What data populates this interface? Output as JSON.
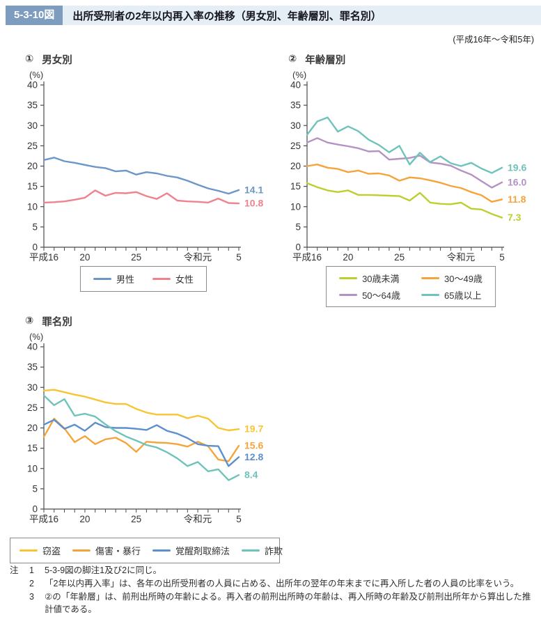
{
  "header": {
    "figure_no": "5-3-10図",
    "title": "出所受刑者の2年以内再入率の推移（男女別、年齢層別、罪名別）",
    "period": "(平成16年～令和5年)"
  },
  "axis": {
    "unit": "(%)",
    "ymax": 40,
    "ystep": 5,
    "n_points": 20,
    "x_ticks": [
      {
        "label": "平成16",
        "index": 0
      },
      {
        "label": "20",
        "index": 4
      },
      {
        "label": "25",
        "index": 9
      },
      {
        "label": "令和元",
        "index": 15
      },
      {
        "label": "5",
        "index": 19
      }
    ]
  },
  "chart_data": [
    {
      "id": "gender",
      "number": "①",
      "title": "男女別",
      "type": "line",
      "ylabel": "(%)",
      "ylim": [
        0,
        40
      ],
      "grid": false,
      "legend_position": "bottom",
      "categories": [
        "平成16",
        "17",
        "18",
        "19",
        "20",
        "21",
        "22",
        "23",
        "24",
        "25",
        "26",
        "27",
        "28",
        "29",
        "30",
        "令和元",
        "2",
        "3",
        "4",
        "5"
      ],
      "series": [
        {
          "name": "男性",
          "color": "#6C96C8",
          "end_label": "14.1",
          "values": [
            21.5,
            22.1,
            21.2,
            20.8,
            20.3,
            19.8,
            19.5,
            18.7,
            18.9,
            17.9,
            18.5,
            18.2,
            17.6,
            17.2,
            16.4,
            15.4,
            14.5,
            13.9,
            13.2,
            14.1
          ]
        },
        {
          "name": "女性",
          "color": "#F0828E",
          "end_label": "10.8",
          "values": [
            11.0,
            11.1,
            11.3,
            11.7,
            12.2,
            14.0,
            12.7,
            13.4,
            13.3,
            13.6,
            12.6,
            11.9,
            13.3,
            11.5,
            11.3,
            11.2,
            11.0,
            12.0,
            10.9,
            10.8
          ]
        }
      ]
    },
    {
      "id": "age-group",
      "number": "②",
      "title": "年齢層別",
      "type": "line",
      "ylabel": "(%)",
      "ylim": [
        0,
        40
      ],
      "grid": false,
      "legend_position": "bottom",
      "categories": [
        "平成16",
        "17",
        "18",
        "19",
        "20",
        "21",
        "22",
        "23",
        "24",
        "25",
        "26",
        "27",
        "28",
        "29",
        "30",
        "令和元",
        "2",
        "3",
        "4",
        "5"
      ],
      "series": [
        {
          "name": "30歳未満",
          "color": "#BCCF2D",
          "end_label": "7.3",
          "values": [
            15.8,
            14.8,
            14.0,
            13.6,
            14.0,
            12.9,
            12.9,
            12.8,
            12.7,
            12.6,
            11.5,
            13.4,
            11.0,
            10.7,
            10.6,
            11.0,
            9.5,
            9.3,
            8.2,
            7.3
          ]
        },
        {
          "name": "30～49歳",
          "color": "#F5A43C",
          "end_label": "11.8",
          "values": [
            20.0,
            20.4,
            19.6,
            19.3,
            18.5,
            18.9,
            18.1,
            18.2,
            17.7,
            16.4,
            17.2,
            17.0,
            16.5,
            15.9,
            15.1,
            14.6,
            13.6,
            12.8,
            11.2,
            11.8
          ]
        },
        {
          "name": "50～64歳",
          "color": "#B492C4",
          "end_label": "16.0",
          "values": [
            25.8,
            26.9,
            25.8,
            25.3,
            24.9,
            24.4,
            23.6,
            23.7,
            21.6,
            21.8,
            22.0,
            22.6,
            20.9,
            20.6,
            20.1,
            18.9,
            17.9,
            16.3,
            14.7,
            16.0
          ]
        },
        {
          "name": "65歳以上",
          "color": "#6EC3BA",
          "end_label": "19.6",
          "values": [
            27.7,
            31.0,
            32.0,
            28.5,
            29.8,
            28.6,
            26.5,
            25.2,
            23.4,
            25.0,
            20.4,
            23.3,
            21.0,
            22.4,
            20.7,
            20.0,
            20.8,
            19.4,
            18.3,
            19.6
          ]
        }
      ]
    },
    {
      "id": "offense",
      "number": "③",
      "title": "罪名別",
      "type": "line",
      "ylabel": "(%)",
      "ylim": [
        0,
        40
      ],
      "grid": false,
      "legend_position": "bottom",
      "categories": [
        "平成16",
        "17",
        "18",
        "19",
        "20",
        "21",
        "22",
        "23",
        "24",
        "25",
        "26",
        "27",
        "28",
        "29",
        "30",
        "令和元",
        "2",
        "3",
        "4",
        "5"
      ],
      "series": [
        {
          "name": "窃盗",
          "color": "#F8C532",
          "end_label": "19.7",
          "values": [
            29.2,
            29.4,
            28.8,
            28.2,
            27.7,
            27.0,
            26.3,
            25.9,
            25.9,
            24.7,
            23.8,
            23.3,
            23.3,
            23.3,
            22.4,
            23.0,
            22.3,
            20.0,
            19.4,
            19.7
          ]
        },
        {
          "name": "傷害・暴行",
          "color": "#F5A43C",
          "end_label": "15.6",
          "values": [
            17.8,
            22.3,
            19.9,
            16.5,
            18.0,
            16.0,
            17.2,
            17.6,
            16.3,
            14.1,
            16.6,
            16.4,
            16.3,
            16.0,
            15.4,
            16.6,
            15.5,
            12.2,
            11.8,
            15.6
          ]
        },
        {
          "name": "覚醒剤取締法",
          "color": "#5C8FCC",
          "end_label": "12.8",
          "values": [
            20.8,
            22.0,
            19.8,
            20.8,
            19.3,
            21.3,
            20.2,
            20.0,
            20.0,
            19.8,
            19.5,
            20.7,
            19.3,
            18.6,
            17.5,
            16.0,
            15.6,
            15.5,
            10.6,
            12.8
          ]
        },
        {
          "name": "詐欺",
          "color": "#6EC3BA",
          "end_label": "8.4",
          "values": [
            28.0,
            25.6,
            27.1,
            23.0,
            23.5,
            22.8,
            20.9,
            19.2,
            17.9,
            16.9,
            15.8,
            15.2,
            14.0,
            12.5,
            10.6,
            11.6,
            9.3,
            9.8,
            7.1,
            8.4
          ]
        }
      ]
    }
  ],
  "notes": {
    "marker": "注",
    "items": [
      {
        "num": "1",
        "text": "5-3-9図の脚注1及び2に同じ。"
      },
      {
        "num": "2",
        "text": "「2年以内再入率」は、各年の出所受刑者の人員に占める、出所年の翌年の年末までに再入所した者の人員の比率をいう。"
      },
      {
        "num": "3",
        "text": "②の「年齢層」は、前刑出所時の年齢による。再入者の前刑出所時の年齢は、再入所時の年齢及び前刑出所年から算出した推計値である。"
      }
    ]
  }
}
